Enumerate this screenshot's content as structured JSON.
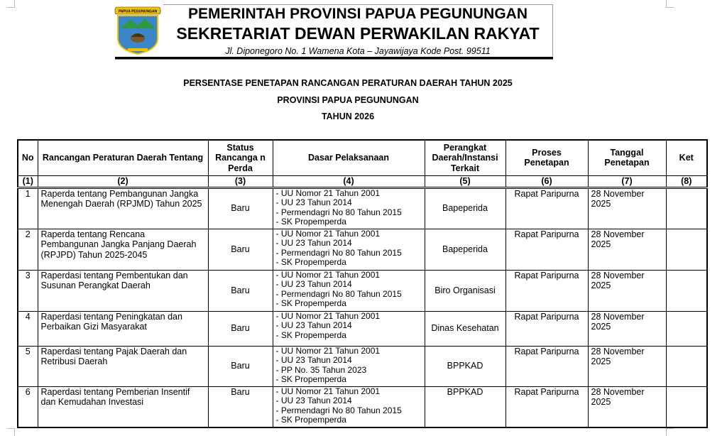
{
  "letterhead": {
    "logo_text": "PAPUA PEGUNUNGAN",
    "line1": "PEMERINTAH PROVINSI PAPUA PEGUNUNGAN",
    "line2": "SEKRETARIAT DEWAN PERWAKILAN RAKYAT",
    "address": "Jl. Diponegoro No. 1 Wamena Kota – Jayawijaya Kode Post. 99511"
  },
  "titles": [
    "PERSENTASE PENETAPAN RANCANGAN PERATURAN DAERAH TAHUN 2025",
    "PROVINSI PAPUA PEGUNUNGAN",
    "TAHUN 2026"
  ],
  "table": {
    "headers": [
      "No",
      "Rancangan Peraturan Daerah Tentang",
      "Status Rancanga n Perda",
      "Dasar Pelaksanaan",
      "Perangkat Daerah/Instansi Terkait",
      "Proses Penetapan",
      "Tanggal Penetapan",
      "Ket"
    ],
    "col_numbers": [
      "(1)",
      "(2)",
      "(3)",
      "(4)",
      "(5)",
      "(6)",
      "(7)",
      "(8)"
    ],
    "rows": [
      {
        "no": "1",
        "title": "Raperda tentang Pembangunan Jangka Menengah Daerah (RPJMD) Tahun 2025",
        "status": "Baru",
        "dasar": [
          "UU Nomor 21 Tahun 2001",
          "UU 23 Tahun 2014",
          "Permendagri No 80 Tahun 2015",
          "SK Propemperda"
        ],
        "perangkat": "Bapeperida",
        "proses": "Rapat Paripurna",
        "tanggal": "28 November 2025",
        "ket": ""
      },
      {
        "no": "2",
        "title": "Raperda tentang Rencana Pembangunan Jangka Panjang Daerah (RPJPD) Tahun 2025-2045",
        "status": "Baru",
        "dasar": [
          "UU Nomor 21 Tahun 2001",
          "UU 23 Tahun 2014",
          "Permendagri No 80 Tahun 2015",
          "SK Propemperda"
        ],
        "perangkat": "Bapeperida",
        "proses": "Rapat Paripurna",
        "tanggal": "28 November 2025",
        "ket": ""
      },
      {
        "no": "3",
        "title": "Raperdasi tentang Pembentukan dan Susunan Perangkat Daerah",
        "status": "Baru",
        "dasar": [
          "UU Nomor 21 Tahun 2001",
          "UU 23 Tahun 2014",
          "Permendagri No 80 Tahun 2015",
          "SK Propemperda"
        ],
        "perangkat": "Biro Organisasi",
        "proses": "Rapat Paripurna",
        "tanggal": "28 November 2025",
        "ket": ""
      },
      {
        "no": "4",
        "title": "Raperdasi tentang Peningkatan dan Perbaikan Gizi Masyarakat",
        "status": "Baru",
        "dasar": [
          "UU Nomor 21 Tahun 2001",
          "UU 23 Tahun 2014",
          "SK Propemperda"
        ],
        "perangkat": "Dinas Kesehatan",
        "proses": "Rapat Paripurna",
        "tanggal": "28 November 2025",
        "ket": ""
      },
      {
        "no": "5",
        "title": "Raperdasi tentang Pajak Daerah dan Retribusi Daerah",
        "status": "Baru",
        "dasar": [
          "UU Nomor 21 Tahun 2001",
          "UU 23 Tahun 2014",
          "PP No. 35 Tahun 2023",
          "SK Propemperda"
        ],
        "perangkat": "BPPKAD",
        "proses": "Rapat Paripurna",
        "tanggal": "28 November 2025",
        "ket": ""
      },
      {
        "no": "6",
        "title": "Raperdasi tentang Pemberian Insentif dan Kemudahan Investasi",
        "status": "Baru",
        "dasar": [
          "UU Nomor 21 Tahun 2001",
          "UU 23 Tahun 2014",
          "Permendagri No 80 Tahun 2015",
          "SK Propemperda"
        ],
        "perangkat": "BPPKAD",
        "proses": "Rapat Paripurna",
        "tanggal": "28 November 2025",
        "ket": ""
      }
    ]
  }
}
